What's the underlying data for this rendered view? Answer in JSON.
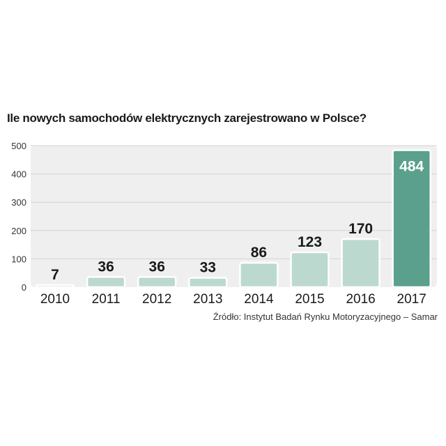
{
  "chart_data": {
    "type": "bar",
    "title": "Ile nowych samochodów elektrycznych zarejestrowano w Polsce?",
    "categories": [
      "2010",
      "2011",
      "2012",
      "2013",
      "2014",
      "2015",
      "2016",
      "2017"
    ],
    "values": [
      7,
      36,
      36,
      33,
      86,
      123,
      170,
      484
    ],
    "value_labels": [
      "7",
      "36",
      "36",
      "33",
      "86",
      "123",
      "170",
      "484"
    ],
    "y_ticks": [
      "0",
      "100",
      "200",
      "300",
      "400",
      "500"
    ],
    "ylim": [
      0,
      500
    ],
    "grid": true,
    "source": "Źródło: Instytut Badań Rynku Motoryzacyjnego – Samar",
    "colors": {
      "bar": "#bcd9cf",
      "bar_highlight": "#5aa08c",
      "bar_border": "#ffffff",
      "plot_background": "#efefef",
      "grid": "#d2d2d2",
      "label_dark": "#1a1a1a",
      "label_light": "#ffffff"
    },
    "highlight_index": 7
  }
}
